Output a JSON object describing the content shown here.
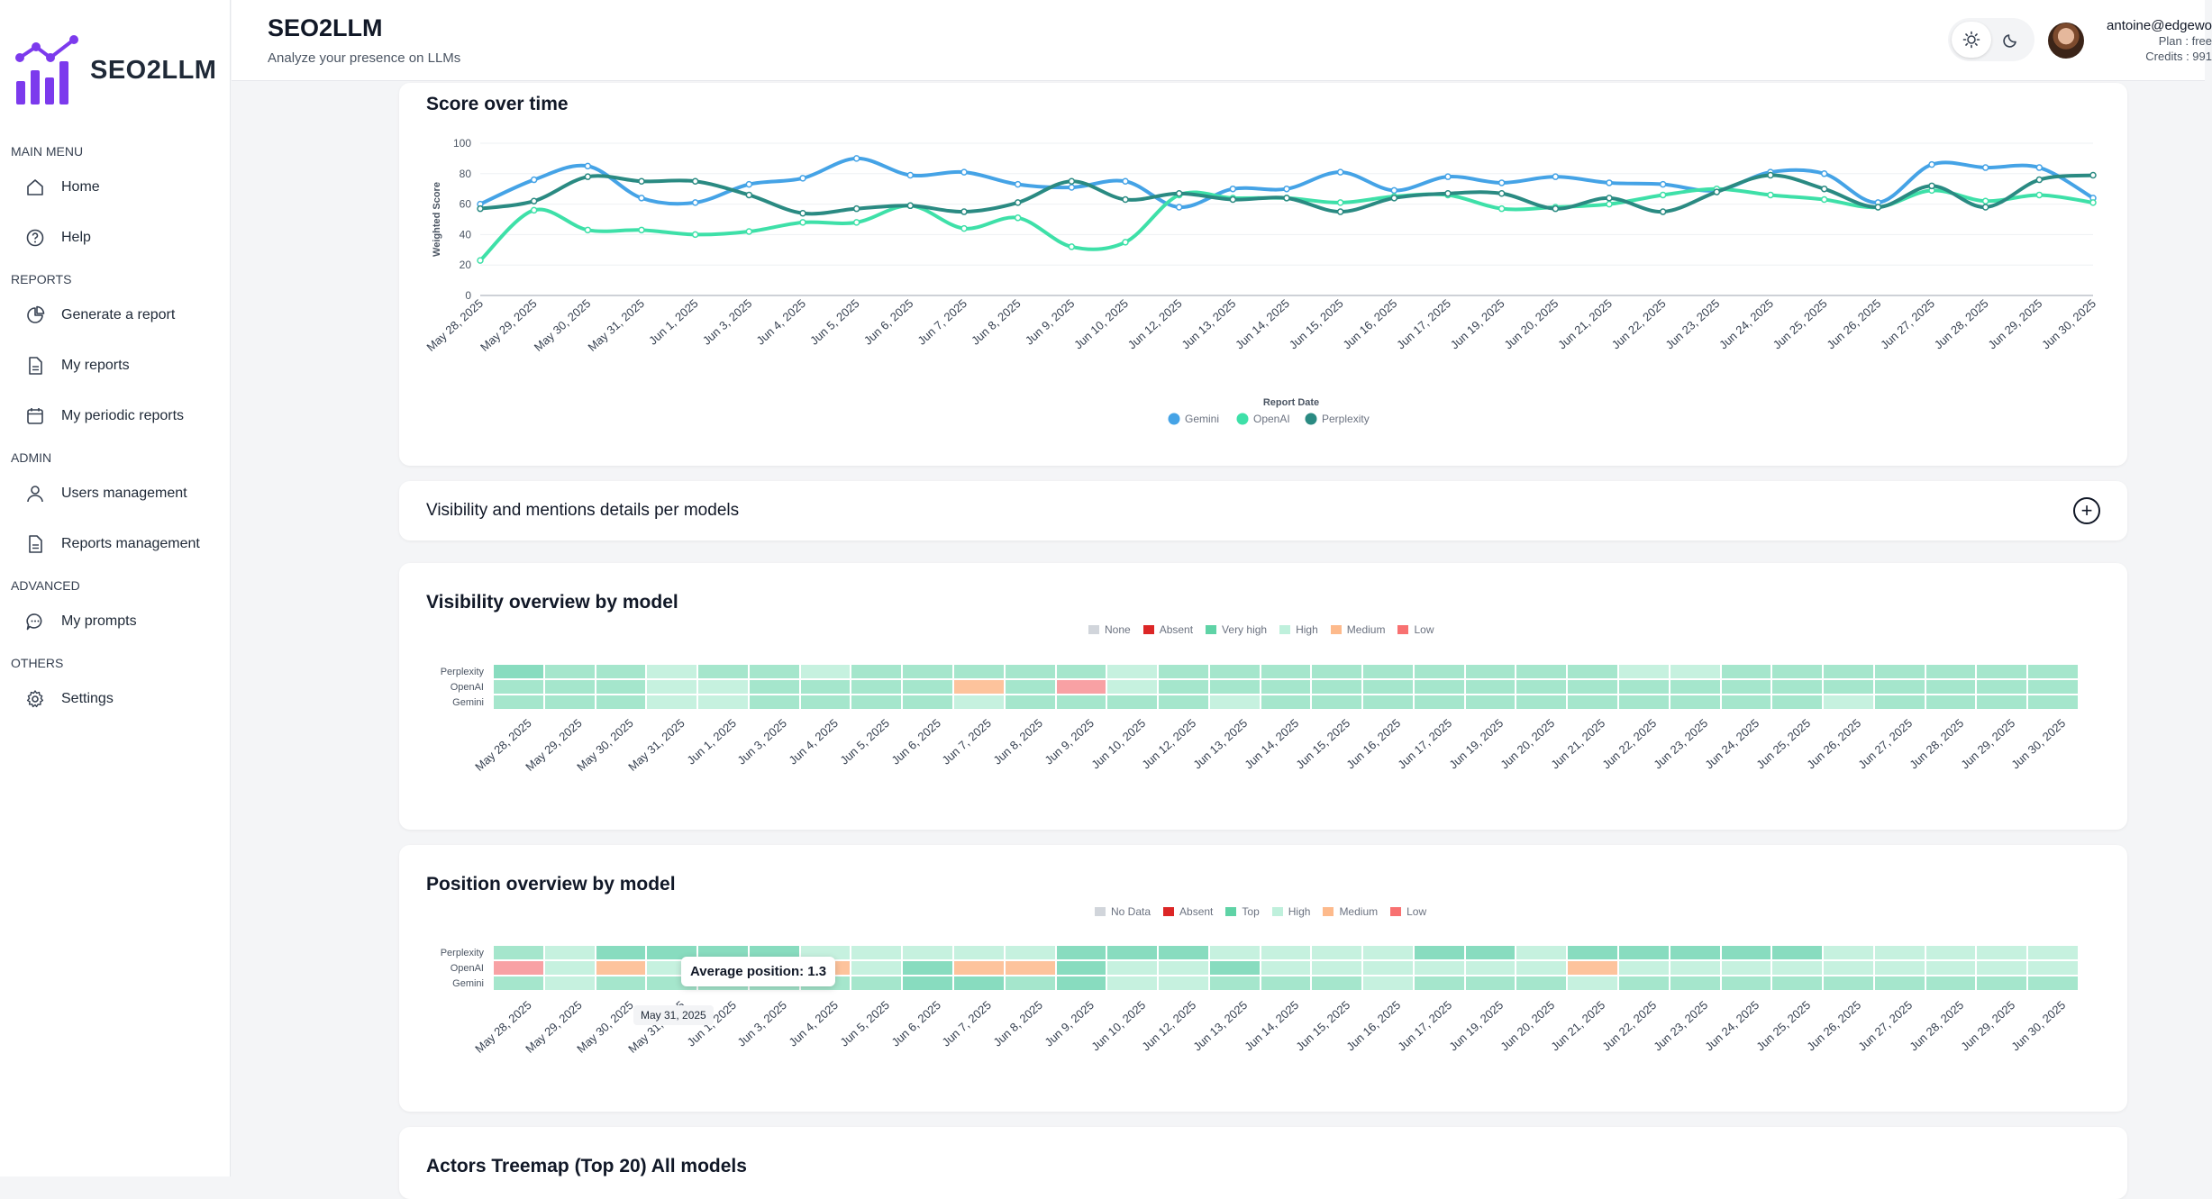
{
  "brand": {
    "name": "SEO2LLM",
    "accent": "#7c3aed"
  },
  "header": {
    "title": "SEO2LLM",
    "subtitle": "Analyze your presence on LLMs",
    "user_email": "antoine@edgewo",
    "user_plan": "Plan : free",
    "user_credits": "Credits : 991"
  },
  "sidebar": {
    "sections": [
      {
        "label": "MAIN MENU",
        "items": [
          {
            "label": "Home",
            "icon": "home-icon"
          },
          {
            "label": "Help",
            "icon": "help-icon"
          }
        ]
      },
      {
        "label": "REPORTS",
        "items": [
          {
            "label": "Generate a report",
            "icon": "pie-chart-icon"
          },
          {
            "label": "My reports",
            "icon": "document-icon"
          },
          {
            "label": "My periodic reports",
            "icon": "calendar-icon"
          }
        ]
      },
      {
        "label": "ADMIN",
        "items": [
          {
            "label": "Users management",
            "icon": "user-icon"
          },
          {
            "label": "Reports management",
            "icon": "document-icon"
          }
        ]
      },
      {
        "label": "ADVANCED",
        "items": [
          {
            "label": "My prompts",
            "icon": "chat-icon"
          }
        ]
      },
      {
        "label": "OTHERS",
        "items": [
          {
            "label": "Settings",
            "icon": "gear-icon"
          }
        ]
      }
    ]
  },
  "dates": [
    "May 28, 2025",
    "May 29, 2025",
    "May 30, 2025",
    "May 31, 2025",
    "Jun 1, 2025",
    "Jun 3, 2025",
    "Jun 4, 2025",
    "Jun 5, 2025",
    "Jun 6, 2025",
    "Jun 7, 2025",
    "Jun 8, 2025",
    "Jun 9, 2025",
    "Jun 10, 2025",
    "Jun 12, 2025",
    "Jun 13, 2025",
    "Jun 14, 2025",
    "Jun 15, 2025",
    "Jun 16, 2025",
    "Jun 17, 2025",
    "Jun 19, 2025",
    "Jun 20, 2025",
    "Jun 21, 2025",
    "Jun 22, 2025",
    "Jun 23, 2025",
    "Jun 24, 2025",
    "Jun 25, 2025",
    "Jun 26, 2025",
    "Jun 27, 2025",
    "Jun 28, 2025",
    "Jun 29, 2025",
    "Jun 30, 2025"
  ],
  "chart_data": [
    {
      "type": "line",
      "title": "Score over time",
      "xlabel": "Report Date",
      "ylabel": "Weighted Score",
      "ylim": [
        0,
        100
      ],
      "yticks": [
        0,
        20,
        40,
        60,
        80,
        100
      ],
      "grid": true,
      "legend": "bottom-center",
      "series": [
        {
          "name": "Gemini",
          "color": "#45a3e6",
          "values": [
            60,
            76,
            85,
            64,
            61,
            73,
            77,
            90,
            79,
            81,
            73,
            71,
            75,
            58,
            70,
            70,
            81,
            69,
            78,
            74,
            78,
            74,
            73,
            69,
            81,
            80,
            61,
            86,
            84,
            84,
            64
          ]
        },
        {
          "name": "OpenAI",
          "color": "#3ee0a8",
          "values": [
            23,
            56,
            43,
            43,
            40,
            42,
            48,
            48,
            59,
            44,
            51,
            32,
            35,
            66,
            64,
            64,
            61,
            65,
            66,
            57,
            58,
            60,
            66,
            70,
            66,
            63,
            58,
            69,
            62,
            66,
            61
          ]
        },
        {
          "name": "Perplexity",
          "color": "#2a8a82",
          "values": [
            57,
            62,
            78,
            75,
            75,
            66,
            54,
            57,
            59,
            55,
            61,
            75,
            63,
            67,
            63,
            64,
            55,
            64,
            67,
            67,
            57,
            64,
            55,
            68,
            79,
            70,
            58,
            72,
            58,
            76,
            79
          ]
        }
      ]
    },
    {
      "type": "heatmap",
      "title": "Visibility overview by model",
      "legend": "top-center",
      "categories_legend": [
        {
          "label": "None",
          "color": "#d1d5db"
        },
        {
          "label": "Absent",
          "color": "#dc2626"
        },
        {
          "label": "Very high",
          "color": "#5fd3a6"
        },
        {
          "label": "High",
          "color": "#bff0dc"
        },
        {
          "label": "Medium",
          "color": "#fdba8c"
        },
        {
          "label": "Low",
          "color": "#f87171"
        }
      ],
      "rows": [
        {
          "name": "Perplexity",
          "levels": [
            0,
            1,
            1,
            2,
            1,
            1,
            2,
            1,
            1,
            1,
            1,
            1,
            2,
            1,
            1,
            1,
            1,
            1,
            1,
            1,
            1,
            1,
            2,
            2,
            1,
            1,
            1,
            1,
            1,
            1,
            1
          ]
        },
        {
          "name": "OpenAI",
          "levels": [
            1,
            1,
            1,
            2,
            2,
            1,
            1,
            1,
            1,
            3,
            1,
            4,
            2,
            1,
            1,
            1,
            1,
            1,
            1,
            1,
            1,
            1,
            1,
            1,
            1,
            1,
            1,
            1,
            1,
            1,
            1
          ]
        },
        {
          "name": "Gemini",
          "levels": [
            1,
            1,
            1,
            2,
            2,
            1,
            1,
            1,
            1,
            2,
            1,
            1,
            1,
            1,
            2,
            1,
            1,
            1,
            1,
            1,
            1,
            1,
            1,
            1,
            1,
            1,
            2,
            1,
            1,
            1,
            1
          ]
        }
      ]
    },
    {
      "type": "heatmap",
      "title": "Position overview by model",
      "legend": "top-center",
      "categories_legend": [
        {
          "label": "No Data",
          "color": "#d1d5db"
        },
        {
          "label": "Absent",
          "color": "#dc2626"
        },
        {
          "label": "Top",
          "color": "#5fd3a6"
        },
        {
          "label": "High",
          "color": "#bff0dc"
        },
        {
          "label": "Medium",
          "color": "#fdba8c"
        },
        {
          "label": "Low",
          "color": "#f87171"
        }
      ],
      "rows": [
        {
          "name": "Perplexity",
          "levels": [
            1,
            2,
            0,
            0,
            0,
            0,
            2,
            2,
            2,
            2,
            2,
            0,
            0,
            0,
            2,
            2,
            2,
            2,
            0,
            0,
            2,
            0,
            0,
            0,
            0,
            0,
            2,
            2,
            2,
            2,
            2
          ]
        },
        {
          "name": "OpenAI",
          "levels": [
            4,
            2,
            3,
            2,
            2,
            2,
            3,
            2,
            0,
            3,
            3,
            0,
            2,
            2,
            0,
            2,
            2,
            2,
            2,
            2,
            2,
            3,
            2,
            2,
            2,
            2,
            2,
            2,
            2,
            2,
            2
          ]
        },
        {
          "name": "Gemini",
          "levels": [
            1,
            2,
            1,
            1,
            1,
            1,
            1,
            1,
            0,
            0,
            1,
            0,
            2,
            2,
            1,
            1,
            1,
            2,
            1,
            1,
            1,
            2,
            1,
            1,
            1,
            1,
            1,
            1,
            1,
            1,
            1
          ]
        }
      ],
      "tooltip": {
        "text": "Average position: 1.3",
        "date": "May 31, 2025"
      }
    }
  ],
  "sections": {
    "score_title": "Score over time",
    "visibility_details_title": "Visibility and mentions details per models",
    "visibility_title": "Visibility overview by model",
    "position_title": "Position overview by model",
    "treemap_title": "Actors Treemap (Top 20) All models"
  }
}
